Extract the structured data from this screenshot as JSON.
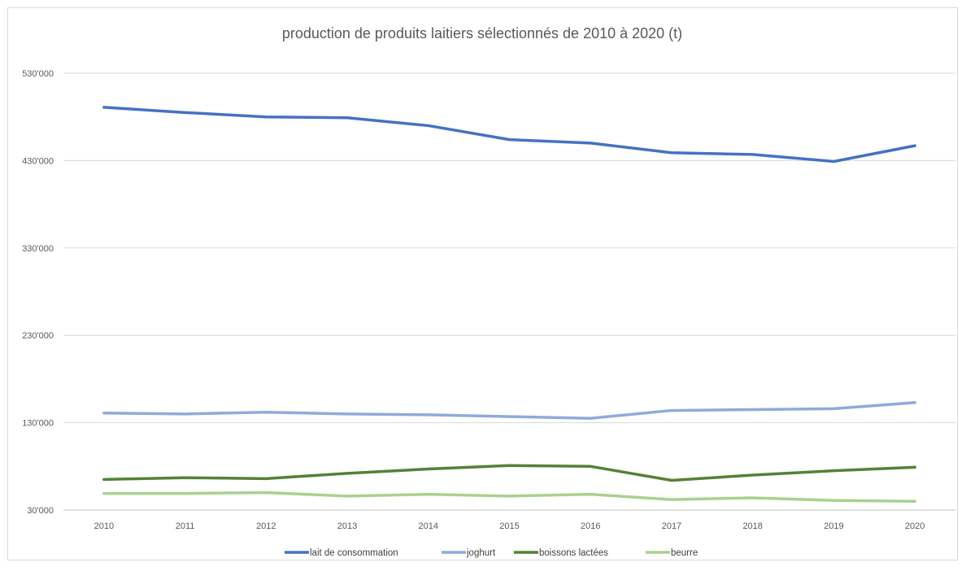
{
  "chart_data": {
    "type": "line",
    "title": "production de produits laitiers sélectionnés de 2010 à 2020 (t)",
    "xlabel": "",
    "ylabel": "",
    "categories": [
      "2010",
      "2011",
      "2012",
      "2013",
      "2014",
      "2015",
      "2016",
      "2017",
      "2018",
      "2019",
      "2020"
    ],
    "y_ticks": [
      30000,
      130000,
      230000,
      330000,
      430000,
      530000
    ],
    "y_tick_labels": [
      "30'000",
      "130'000",
      "230'000",
      "330'000",
      "430'000",
      "530'000"
    ],
    "ylim": [
      30000,
      530000
    ],
    "grid": true,
    "legend_position": "bottom",
    "series": [
      {
        "name": "lait de consommation",
        "color": "#4472c4",
        "values": [
          491000,
          485000,
          480000,
          479000,
          470000,
          454000,
          450000,
          439000,
          437000,
          429000,
          447000
        ]
      },
      {
        "name": "joghurt",
        "color": "#8faadc",
        "values": [
          141000,
          140000,
          142000,
          140000,
          139000,
          137000,
          135000,
          144000,
          145000,
          146000,
          153000
        ]
      },
      {
        "name": "boissons lactées",
        "color": "#548235",
        "values": [
          65000,
          67000,
          66000,
          72000,
          77000,
          81000,
          80000,
          64000,
          70000,
          75000,
          79000
        ]
      },
      {
        "name": "beurre",
        "color": "#a9d18e",
        "values": [
          49000,
          49000,
          50000,
          46000,
          48000,
          46000,
          48000,
          42000,
          44000,
          41000,
          40000
        ]
      }
    ]
  }
}
